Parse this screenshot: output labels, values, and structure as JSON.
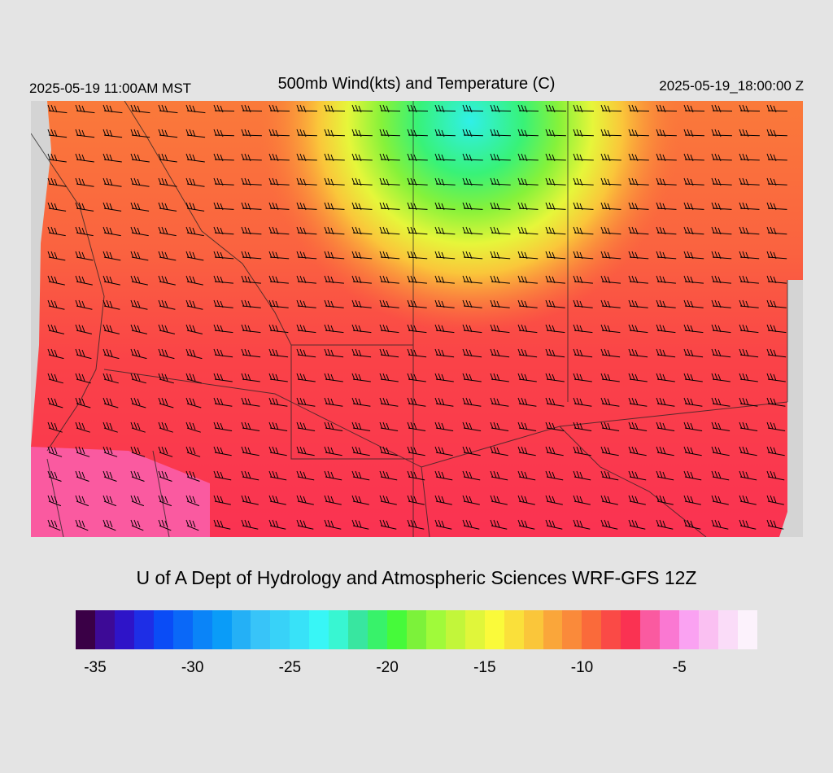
{
  "header": {
    "local_time": "2025-05-19 11:00AM MST",
    "title": "500mb Wind(kts) and Temperature (C)",
    "valid_time": "2025-05-19_18:00:00 Z"
  },
  "credit": "U of A Dept of Hydrology and Atmospheric Sciences WRF-GFS 12Z",
  "colorbar": {
    "min": -36,
    "max": -1,
    "colors": [
      "#3a0046",
      "#3d0a96",
      "#2e14c8",
      "#1e2ee6",
      "#0a4cf6",
      "#0a68f8",
      "#0a84f8",
      "#0a9cf8",
      "#24b0f6",
      "#38c4f8",
      "#38d2f8",
      "#38e2f8",
      "#38f6f6",
      "#38f6d2",
      "#38e6a0",
      "#38f26a",
      "#46fa3a",
      "#7cf23a",
      "#a0fa3a",
      "#c2f63a",
      "#e0f63a",
      "#fafa3a",
      "#fae03a",
      "#fac63a",
      "#faa63a",
      "#fa8a3a",
      "#fa6a3a",
      "#fa4a46",
      "#fa3252",
      "#fa5aa0",
      "#fa78d2",
      "#faa2f2",
      "#fac0f2",
      "#fadcf8",
      "#fcf2fc"
    ],
    "labels": [
      {
        "value": -35,
        "text": "-35"
      },
      {
        "value": -30,
        "text": "-30"
      },
      {
        "value": -25,
        "text": "-25"
      },
      {
        "value": -20,
        "text": "-20"
      },
      {
        "value": -15,
        "text": "-15"
      },
      {
        "value": -10,
        "text": "-10"
      },
      {
        "value": -5,
        "text": "-5"
      }
    ]
  },
  "map": {
    "field": "500mb temperature (C)",
    "cold_core_temp": -25,
    "warmest_temp": -7,
    "wind_barb_speed_kts_typical": 30
  }
}
